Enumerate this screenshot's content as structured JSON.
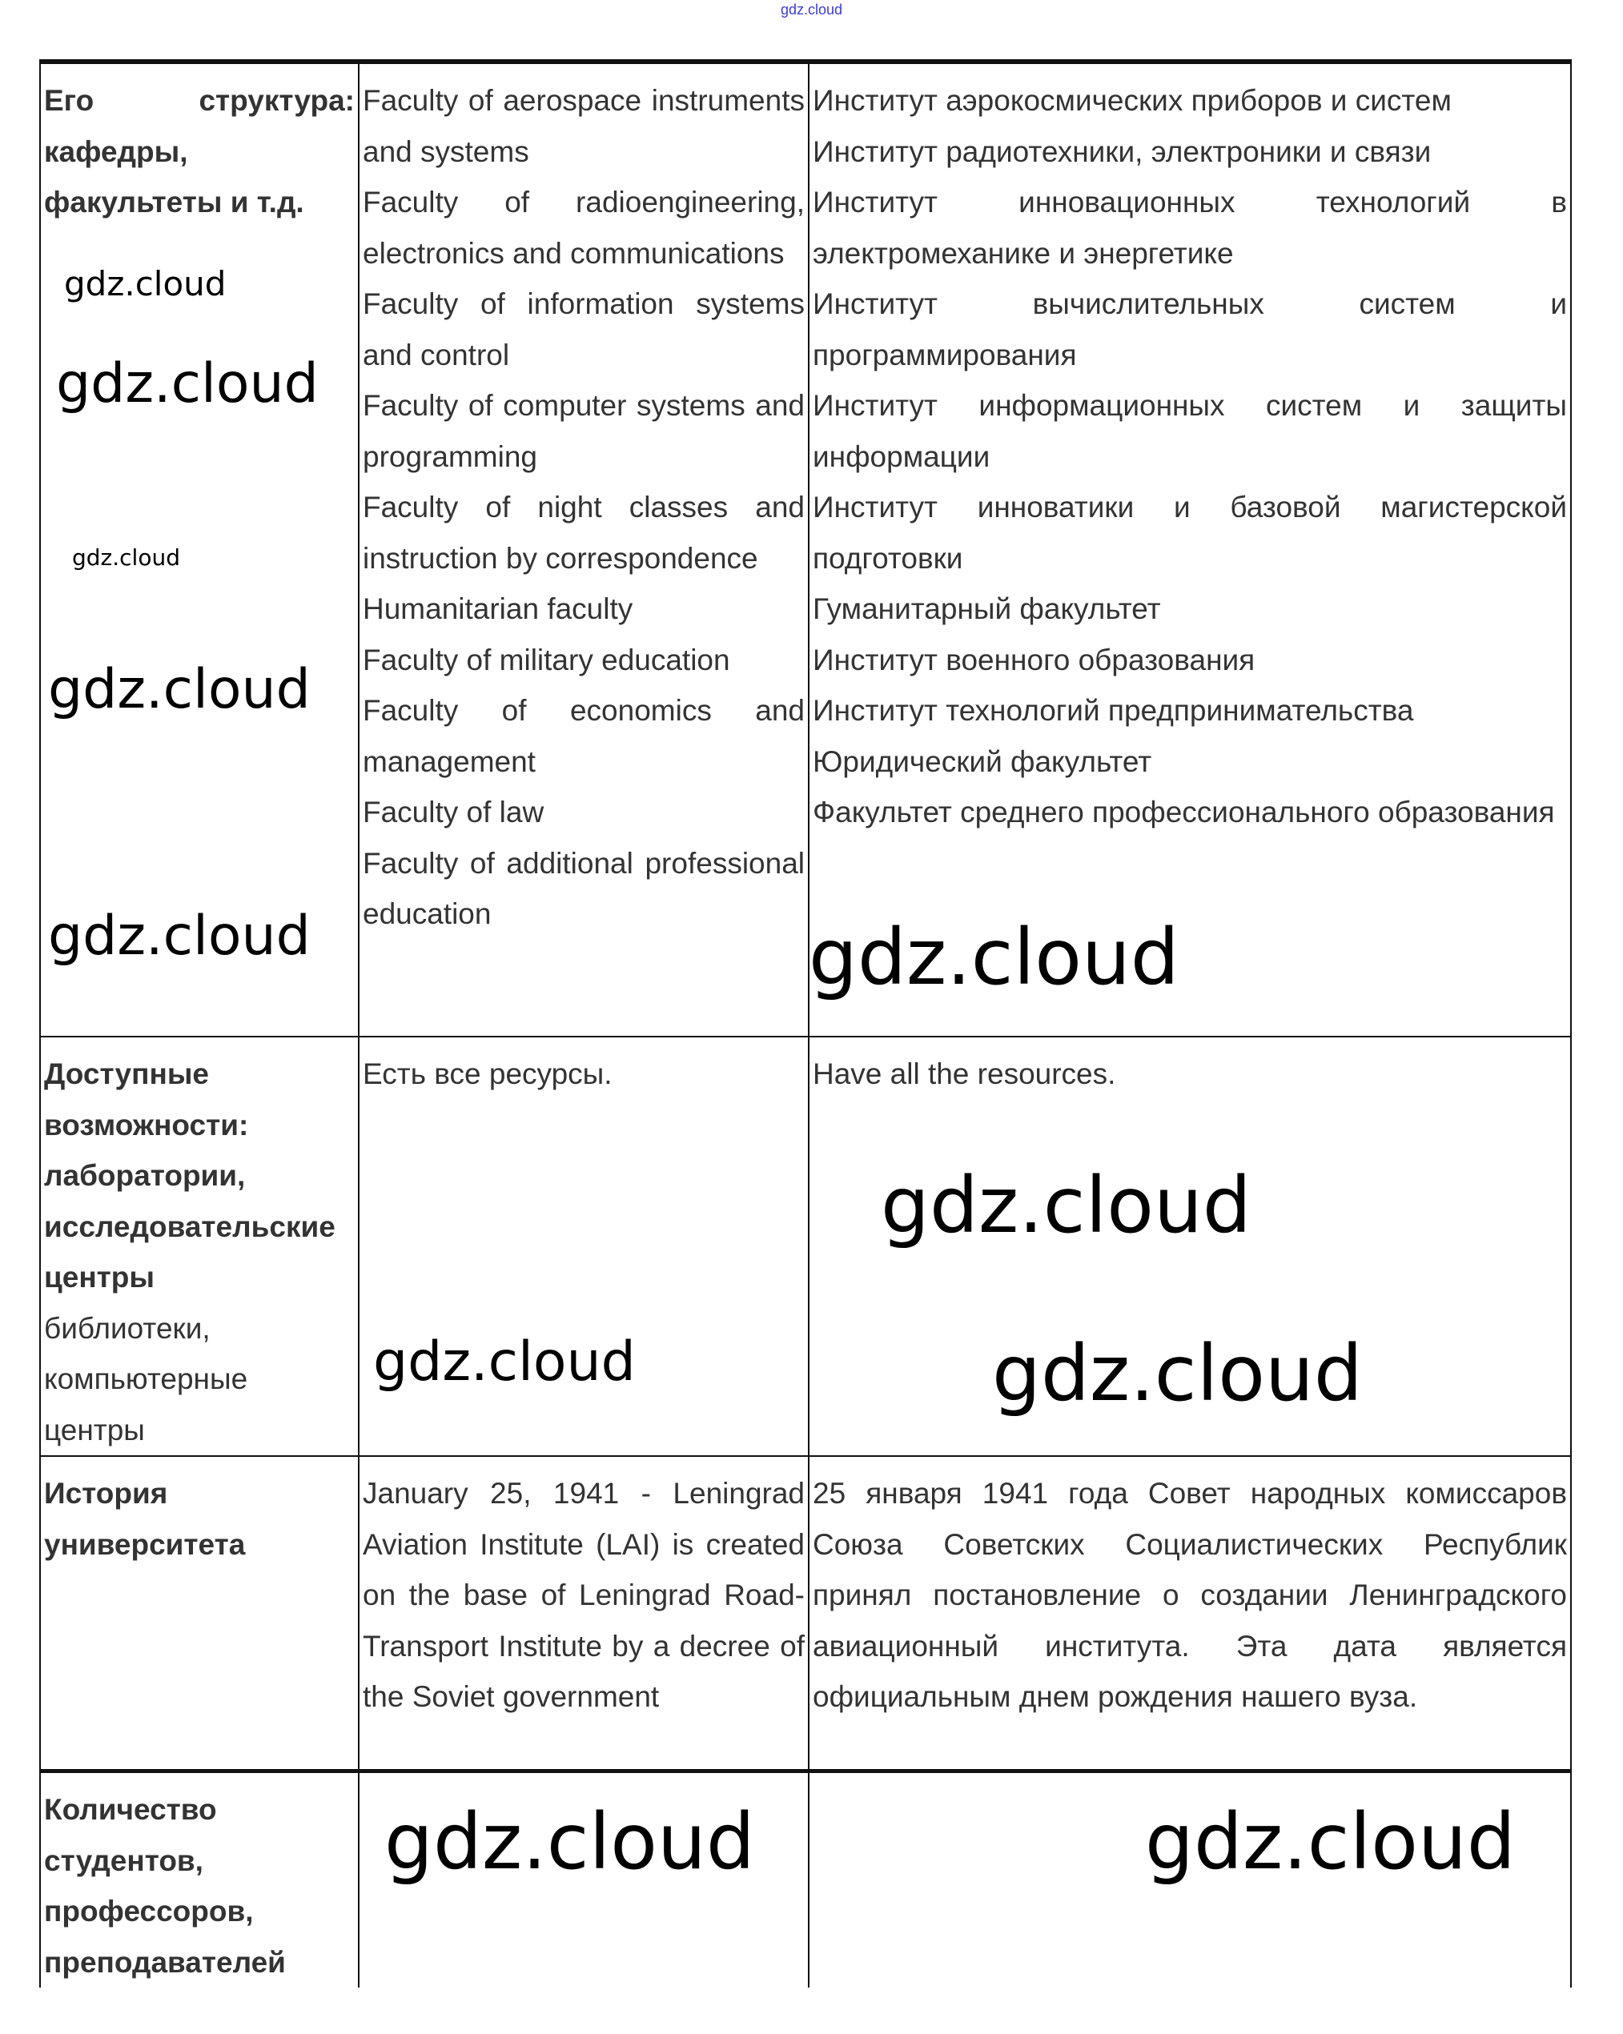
{
  "top_watermark": "gdz.cloud",
  "rows": [
    {
      "label_bold": "Его структура: кафедры, факультеты и т.д.",
      "label_normal": "",
      "english": [
        "Faculty of aerospace instruments and systems",
        "Faculty of radioengineering, electronics and communications",
        "Faculty of information systems and control",
        "Faculty of computer systems and programming",
        "Faculty of night classes and instruction by correspondence",
        "Humanitarian faculty",
        "Faculty of military education",
        "Faculty of economics and management",
        "Faculty of law",
        "Faculty of additional professional education"
      ],
      "russian": [
        "Институт аэрокосмических приборов и систем",
        "Институт радиотехники, электроники и связи",
        "Институт инновационных технологий в электромеханике и энергетике",
        "Институт вычислительных систем и программирования",
        "Институт информационных систем и защиты информации",
        "Институт инноватики и базовой магистерской подготовки",
        "Гуманитарный факультет",
        "Институт военного образования",
        "Институт технологий предпринимательства",
        "Юридический факультет",
        "Факультет среднего профессионального образования"
      ]
    },
    {
      "label_bold": "Доступные возможности: лаборатории, исследовательские центры",
      "label_normal": "библиотеки, компьютерные центры",
      "col2": "Есть все ресурсы.",
      "col3": "Have all the resources."
    },
    {
      "label_bold": "История университета",
      "col2": "January 25, 1941 - Leningrad Aviation Institute (LAI) is created on the base of Leningrad Road-Transport Institute by a decree of the Soviet government",
      "col3": "25 января 1941 года Совет народных комиссаров Союза Советских Социалистических Республик принял постановление о создании Ленинградского авиационный института. Эта дата является официальным днем рождения нашего вуза."
    },
    {
      "label_bold": "Количество студентов, профессоров, преподавателей"
    }
  ],
  "watermarks": [
    "gdz.cloud",
    "gdz.cloud",
    "gdz.cloud",
    "gdz.cloud",
    "gdz.cloud",
    "gdz.cloud",
    "gdz.cloud",
    "gdz.cloud",
    "gdz.cloud",
    "gdz.cloud",
    "gdz.cloud"
  ]
}
